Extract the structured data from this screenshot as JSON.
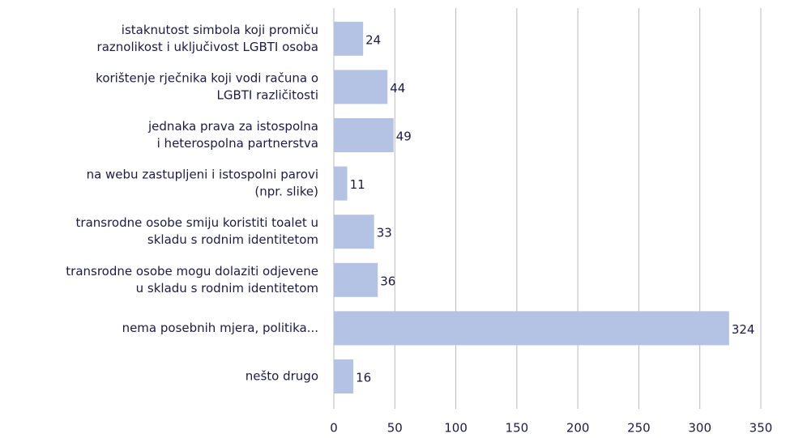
{
  "chart_data": {
    "type": "bar",
    "orientation": "horizontal",
    "categories": [
      [
        "istaknutost simbola koji promiču",
        "raznolikost i uključivost LGBTI osoba"
      ],
      [
        "korištenje rječnika koji vodi računa o",
        "LGBTI različitosti"
      ],
      [
        "jednaka prava za istospolna",
        "i heterospolna partnerstva"
      ],
      [
        "na webu zastupljeni i istospolni parovi",
        "(npr. slike)"
      ],
      [
        "transrodne osobe smiju koristiti toalet u",
        "skladu s rodnim identitetom"
      ],
      [
        "transrodne osobe mogu dolaziti odjevene",
        "u skladu s rodnim identitetom"
      ],
      [
        "nema posebnih mjera, politika..."
      ],
      [
        "nešto drugo"
      ]
    ],
    "values": [
      24,
      44,
      49,
      11,
      33,
      36,
      324,
      16
    ],
    "color": "#b4c2e3",
    "xlim": [
      0,
      350
    ],
    "xticks": [
      0,
      50,
      100,
      150,
      200,
      250,
      300,
      350
    ],
    "grid": true
  }
}
